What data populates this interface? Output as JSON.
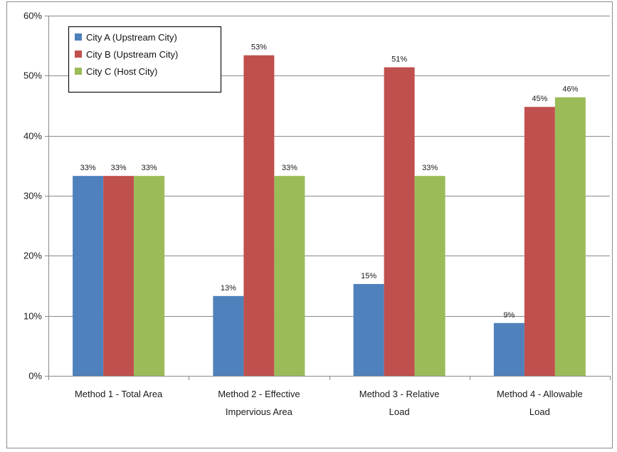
{
  "chart_data": {
    "type": "bar",
    "title": "",
    "xlabel": "",
    "ylabel": "",
    "categories": [
      [
        "Method 1 - Total Area"
      ],
      [
        "Method 2 - Effective",
        "Impervious Area"
      ],
      [
        "Method 3 - Relative",
        "Load"
      ],
      [
        "Method 4 - Allowable",
        "Load"
      ]
    ],
    "series": [
      {
        "name": "City A (Upstream City)",
        "color": "#4f81bd",
        "values": [
          33.3,
          13.3,
          15.3,
          8.8
        ],
        "labels": [
          "33%",
          "13%",
          "15%",
          "9%"
        ]
      },
      {
        "name": "City B (Upstream City)",
        "color": "#c0504d",
        "values": [
          33.3,
          53.4,
          51.4,
          44.8
        ],
        "labels": [
          "33%",
          "53%",
          "51%",
          "45%"
        ]
      },
      {
        "name": "City C (Host City)",
        "color": "#9bbb59",
        "values": [
          33.3,
          33.3,
          33.3,
          46.4
        ],
        "labels": [
          "33%",
          "33%",
          "33%",
          "46%"
        ]
      }
    ],
    "ylim": [
      0,
      60
    ],
    "yticks": [
      0,
      10,
      20,
      30,
      40,
      50,
      60
    ],
    "ytick_labels": [
      "0%",
      "10%",
      "20%",
      "30%",
      "40%",
      "50%",
      "60%"
    ],
    "grid": "horizontal",
    "legend": "top-left"
  }
}
